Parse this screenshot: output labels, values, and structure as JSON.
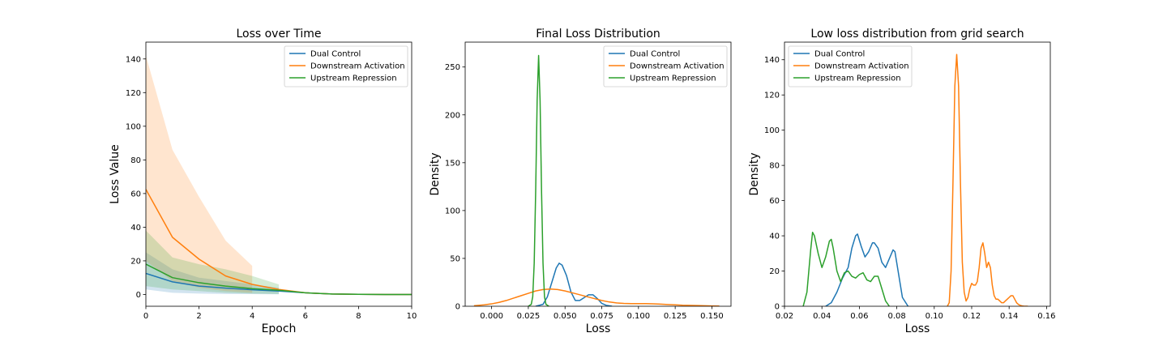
{
  "colors": {
    "blue": "#1f77b4",
    "orange": "#ff7f0e",
    "green": "#2ca02c"
  },
  "chart_data": [
    {
      "type": "line",
      "title": "Loss over Time",
      "xlabel": "Epoch",
      "ylabel": "Loss Value",
      "xlim": [
        0,
        10
      ],
      "ylim": [
        -7,
        150
      ],
      "xticks": [
        0,
        2,
        4,
        6,
        8,
        10
      ],
      "yticks": [
        0,
        20,
        40,
        60,
        80,
        100,
        120,
        140
      ],
      "legend": "top-right",
      "grid": false,
      "series": [
        {
          "name": "Dual Control",
          "color": "#1f77b4",
          "x": [
            0,
            1,
            2,
            3,
            4,
            5,
            6,
            7,
            8,
            9,
            10
          ],
          "y": [
            12.5,
            7.5,
            5,
            3.8,
            2.8,
            2,
            1,
            0.3,
            0.1,
            0,
            0
          ],
          "band_x": [
            0,
            1,
            2,
            3,
            4,
            5
          ],
          "band_lower": [
            3,
            1,
            0.5,
            0.3,
            0.2,
            0.1
          ],
          "band_upper": [
            25,
            15,
            10,
            8,
            6,
            4
          ]
        },
        {
          "name": "Downstream Activation",
          "color": "#ff7f0e",
          "x": [
            0,
            1,
            2,
            3,
            4,
            5,
            6,
            7,
            8,
            9,
            10
          ],
          "y": [
            62.5,
            34,
            21,
            11,
            6,
            3,
            1,
            0.3,
            0.1,
            0,
            0
          ],
          "band_x": [
            0,
            1,
            2,
            3,
            4
          ],
          "band_lower": [
            20,
            8,
            4,
            2,
            1
          ],
          "band_upper": [
            142,
            86,
            58,
            32,
            17
          ]
        },
        {
          "name": "Upstream Repression",
          "color": "#2ca02c",
          "x": [
            0,
            1,
            2,
            3,
            4,
            5,
            6,
            7,
            8,
            9,
            10
          ],
          "y": [
            18,
            10,
            7,
            5,
            3.5,
            2.5,
            1,
            0.3,
            0.1,
            0,
            0
          ],
          "band_x": [
            0,
            1,
            2,
            3,
            4,
            5
          ],
          "band_lower": [
            5,
            3,
            2,
            1,
            0.5,
            0.3
          ],
          "band_upper": [
            38,
            22,
            18,
            15,
            11,
            6
          ]
        }
      ]
    },
    {
      "type": "line",
      "title": "Final Loss Distribution",
      "xlabel": "Loss",
      "ylabel": "Density",
      "xlim": [
        -0.018,
        0.163
      ],
      "ylim": [
        0,
        276
      ],
      "xticks": [
        0.0,
        0.025,
        0.05,
        0.075,
        0.1,
        0.125,
        0.15
      ],
      "xticklabels": [
        "0.000",
        "0.025",
        "0.050",
        "0.075",
        "0.100",
        "0.125",
        "0.150"
      ],
      "yticks": [
        0,
        50,
        100,
        150,
        200,
        250
      ],
      "legend": "top-right",
      "grid": false,
      "series": [
        {
          "name": "Dual Control",
          "color": "#1f77b4",
          "x": [
            0.03,
            0.035,
            0.038,
            0.041,
            0.044,
            0.046,
            0.048,
            0.051,
            0.054,
            0.057,
            0.06,
            0.063,
            0.066,
            0.069,
            0.072,
            0.075,
            0.078,
            0.082
          ],
          "y": [
            0,
            2,
            10,
            25,
            40,
            45,
            43,
            32,
            15,
            6,
            6,
            9,
            12,
            12,
            8,
            3,
            1,
            0
          ]
        },
        {
          "name": "Downstream Activation",
          "color": "#ff7f0e",
          "x": [
            -0.012,
            -0.005,
            0.0,
            0.005,
            0.01,
            0.015,
            0.02,
            0.025,
            0.03,
            0.035,
            0.04,
            0.045,
            0.05,
            0.055,
            0.06,
            0.065,
            0.07,
            0.075,
            0.08,
            0.085,
            0.09,
            0.095,
            0.1,
            0.105,
            0.11,
            0.115,
            0.12,
            0.125,
            0.13,
            0.14,
            0.15,
            0.155
          ],
          "y": [
            0.5,
            1.5,
            2.5,
            4,
            6,
            8.5,
            11,
            13.5,
            16,
            17.5,
            18,
            17.5,
            16,
            14,
            12,
            10,
            8,
            6,
            4.5,
            3.5,
            3,
            2.8,
            2.8,
            2.7,
            2.5,
            2.2,
            1.8,
            1.5,
            1.1,
            0.7,
            0.3,
            0.2
          ]
        },
        {
          "name": "Upstream Repression",
          "color": "#2ca02c",
          "x": [
            0.025,
            0.027,
            0.028,
            0.029,
            0.03,
            0.031,
            0.032,
            0.033,
            0.034,
            0.035,
            0.036,
            0.037,
            0.039
          ],
          "y": [
            0,
            2,
            10,
            45,
            120,
            215,
            262,
            215,
            120,
            45,
            10,
            2,
            0
          ]
        }
      ]
    },
    {
      "type": "line",
      "title": "Low loss distribution from grid search",
      "xlabel": "Loss",
      "ylabel": "Density",
      "xlim": [
        0.02,
        0.162
      ],
      "ylim": [
        0,
        150
      ],
      "xticks": [
        0.02,
        0.04,
        0.06,
        0.08,
        0.1,
        0.12,
        0.14,
        0.16
      ],
      "xticklabels": [
        "0.02",
        "0.04",
        "0.06",
        "0.08",
        "0.10",
        "0.12",
        "0.14",
        "0.16"
      ],
      "yticks": [
        0,
        20,
        40,
        60,
        80,
        100,
        120,
        140
      ],
      "legend": "top-left",
      "grid": false,
      "series": [
        {
          "name": "Dual Control",
          "color": "#1f77b4",
          "x": [
            0.042,
            0.045,
            0.048,
            0.051,
            0.054,
            0.056,
            0.058,
            0.059,
            0.061,
            0.063,
            0.065,
            0.067,
            0.068,
            0.07,
            0.072,
            0.074,
            0.076,
            0.078,
            0.079,
            0.081,
            0.083,
            0.086
          ],
          "y": [
            0,
            2,
            8,
            16,
            22,
            33,
            40,
            41,
            34,
            28,
            31,
            36,
            36,
            33,
            25,
            22,
            27,
            32,
            31,
            18,
            5,
            0
          ]
        },
        {
          "name": "Downstream Activation",
          "color": "#ff7f0e",
          "x": [
            0.107,
            0.108,
            0.109,
            0.11,
            0.111,
            0.112,
            0.113,
            0.114,
            0.115,
            0.116,
            0.117,
            0.118,
            0.119,
            0.12,
            0.121,
            0.122,
            0.123,
            0.124,
            0.125,
            0.126,
            0.127,
            0.128,
            0.129,
            0.13,
            0.131,
            0.132,
            0.133,
            0.134,
            0.135,
            0.136,
            0.137,
            0.138,
            0.139,
            0.14,
            0.141,
            0.142,
            0.143,
            0.144,
            0.145,
            0.146,
            0.147,
            0.148,
            0.149,
            0.15
          ],
          "y": [
            0,
            2,
            20,
            70,
            125,
            143,
            125,
            70,
            25,
            8,
            3,
            5,
            10,
            13,
            12,
            12,
            14,
            22,
            33,
            36,
            30,
            22,
            25,
            22,
            12,
            6,
            4,
            4,
            3,
            2,
            2,
            3,
            4,
            5,
            6,
            6,
            4,
            2,
            1,
            0.5,
            0.2,
            0,
            0,
            0
          ]
        },
        {
          "name": "Upstream Repression",
          "color": "#2ca02c",
          "x": [
            0.03,
            0.032,
            0.034,
            0.035,
            0.036,
            0.038,
            0.04,
            0.042,
            0.044,
            0.045,
            0.046,
            0.048,
            0.05,
            0.052,
            0.054,
            0.056,
            0.058,
            0.06,
            0.062,
            0.064,
            0.066,
            0.068,
            0.07,
            0.072,
            0.074,
            0.076
          ],
          "y": [
            0,
            8,
            32,
            42,
            40,
            30,
            22,
            28,
            37,
            38,
            33,
            20,
            14,
            19,
            20,
            17,
            16,
            18,
            19,
            15,
            14,
            17,
            17,
            10,
            3,
            0
          ]
        }
      ]
    }
  ]
}
